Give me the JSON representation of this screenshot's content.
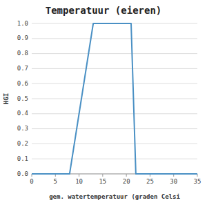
{
  "chart_data": {
    "type": "line",
    "title": "Temperatuur (eieren)",
    "x_label": "gem. watertemperatuur (graden Celsi",
    "y_label": "HGI",
    "x": [
      0,
      8,
      13,
      21,
      22,
      35
    ],
    "values": [
      0.0,
      0.0,
      1.0,
      1.0,
      0.0,
      0.0
    ],
    "color": "#4a90c4",
    "xlim": [
      0,
      35
    ],
    "ylim": [
      0.0,
      1.0
    ],
    "xticks": [
      0,
      5,
      10,
      15,
      20,
      25,
      30,
      35
    ],
    "yticks": [
      {
        "value": 0.0,
        "label": "0.0"
      },
      0.1,
      0.2,
      0.3,
      0.4,
      0.5,
      0.6,
      0.7,
      0.8,
      0.9,
      {
        "value": 1.0,
        "label": "1.0"
      }
    ],
    "grid": "y"
  }
}
